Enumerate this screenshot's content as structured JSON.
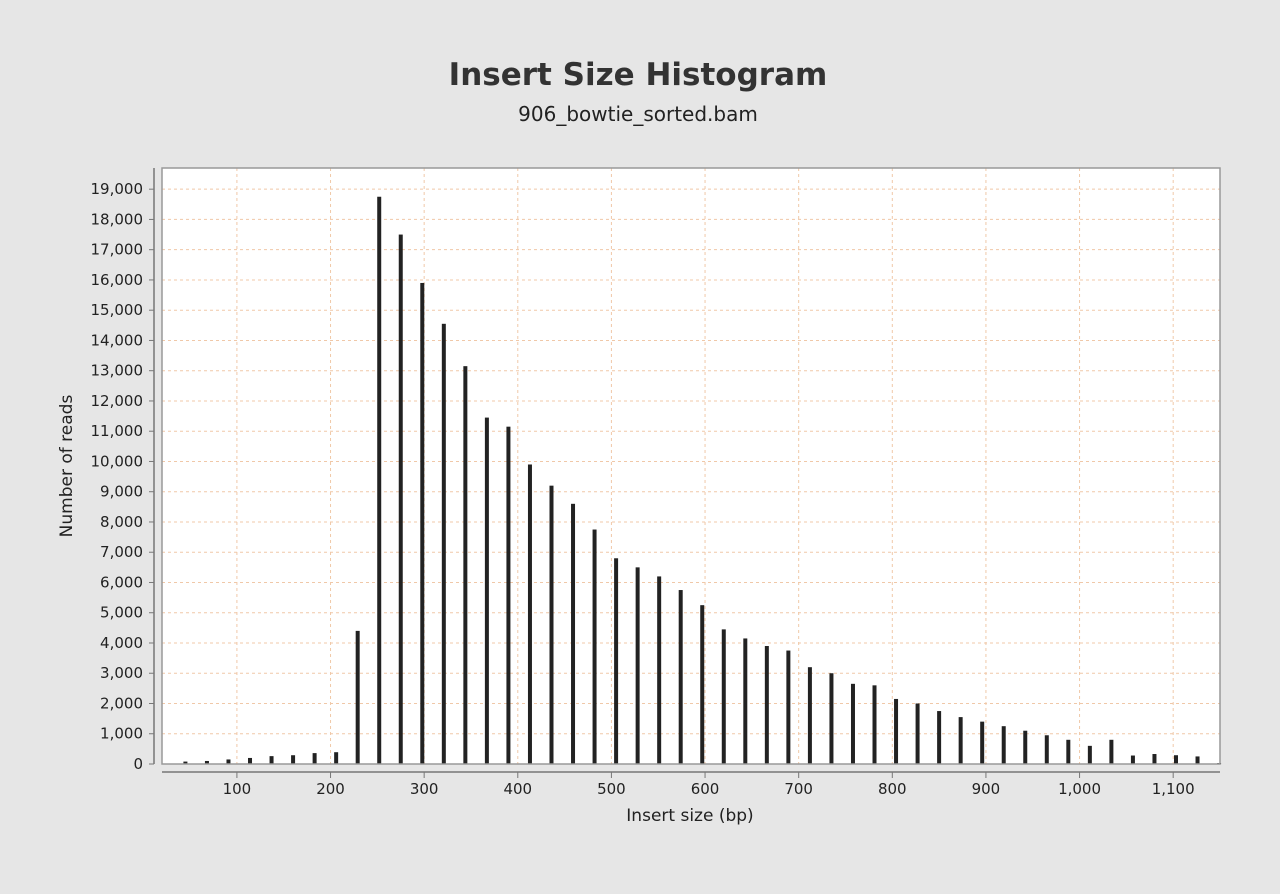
{
  "chart_data": {
    "type": "bar",
    "title": "Insert Size Histogram",
    "subtitle": "906_bowtie_sorted.bam",
    "xlabel": "Insert size (bp)",
    "ylabel": "Number of reads",
    "xlim": [
      20,
      1150
    ],
    "ylim": [
      0,
      19700
    ],
    "xticks": [
      100,
      200,
      300,
      400,
      500,
      600,
      700,
      800,
      900,
      1000,
      1100
    ],
    "xtick_labels": [
      "100",
      "200",
      "300",
      "400",
      "500",
      "600",
      "700",
      "800",
      "900",
      "1,000",
      "1,100"
    ],
    "yticks": [
      0,
      1000,
      2000,
      3000,
      4000,
      5000,
      6000,
      7000,
      8000,
      9000,
      10000,
      11000,
      12000,
      13000,
      14000,
      15000,
      16000,
      17000,
      18000,
      19000
    ],
    "ytick_labels": [
      "0",
      "1,000",
      "2,000",
      "3,000",
      "4,000",
      "5,000",
      "6,000",
      "7,000",
      "8,000",
      "9,000",
      "10,000",
      "11,000",
      "12,000",
      "13,000",
      "14,000",
      "15,000",
      "16,000",
      "17,000",
      "18,000",
      "19,000"
    ],
    "grid": true,
    "x": [
      45,
      68,
      91,
      114,
      137,
      160,
      183,
      206,
      229,
      252,
      275,
      298,
      321,
      344,
      367,
      390,
      413,
      436,
      459,
      482,
      505,
      528,
      551,
      574,
      597,
      620,
      643,
      666,
      689,
      712,
      735,
      758,
      781,
      804,
      827,
      850,
      873,
      896,
      919,
      942,
      965,
      988,
      1011,
      1034,
      1057,
      1080,
      1103,
      1126,
      1149
    ],
    "values": [
      80,
      100,
      150,
      200,
      260,
      290,
      360,
      390,
      4400,
      18750,
      17500,
      15900,
      14550,
      13150,
      11450,
      11150,
      9900,
      9200,
      8600,
      7750,
      6800,
      6500,
      6200,
      5750,
      5250,
      4450,
      4150,
      3900,
      3750,
      3200,
      3000,
      2650,
      2600,
      2150,
      2000,
      1750,
      1550,
      1400,
      1250,
      1100,
      950,
      800,
      600,
      800,
      280,
      330,
      290,
      250,
      30
    ]
  },
  "colors": {
    "background": "#e6e6e6",
    "plot_background": "#ffffff",
    "bar": "#222222",
    "grid": "#f0c8a8"
  }
}
